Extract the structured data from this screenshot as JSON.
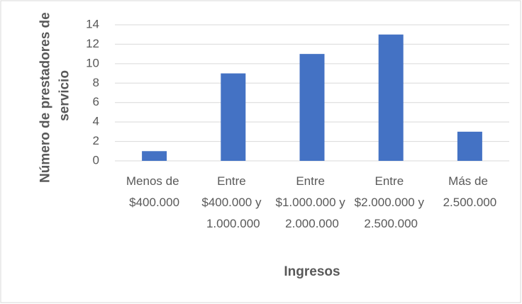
{
  "chart_data": {
    "type": "bar",
    "x_label": "Ingresos",
    "y_label": "Número de prestadores de servicio",
    "categories": [
      "Menos de $400.000",
      "Entre $400.000 y 1.000.000",
      "Entre $1.000.000 y 2.000.000",
      "Entre $2.000.000 y 2.500.000",
      "Más de 2.500.000"
    ],
    "values": [
      1,
      9,
      11,
      13,
      3
    ],
    "color": "#4472c4",
    "ylim": [
      0,
      14
    ],
    "yticks": [
      0,
      2,
      4,
      6,
      8,
      10,
      12,
      14
    ],
    "grid": true
  }
}
